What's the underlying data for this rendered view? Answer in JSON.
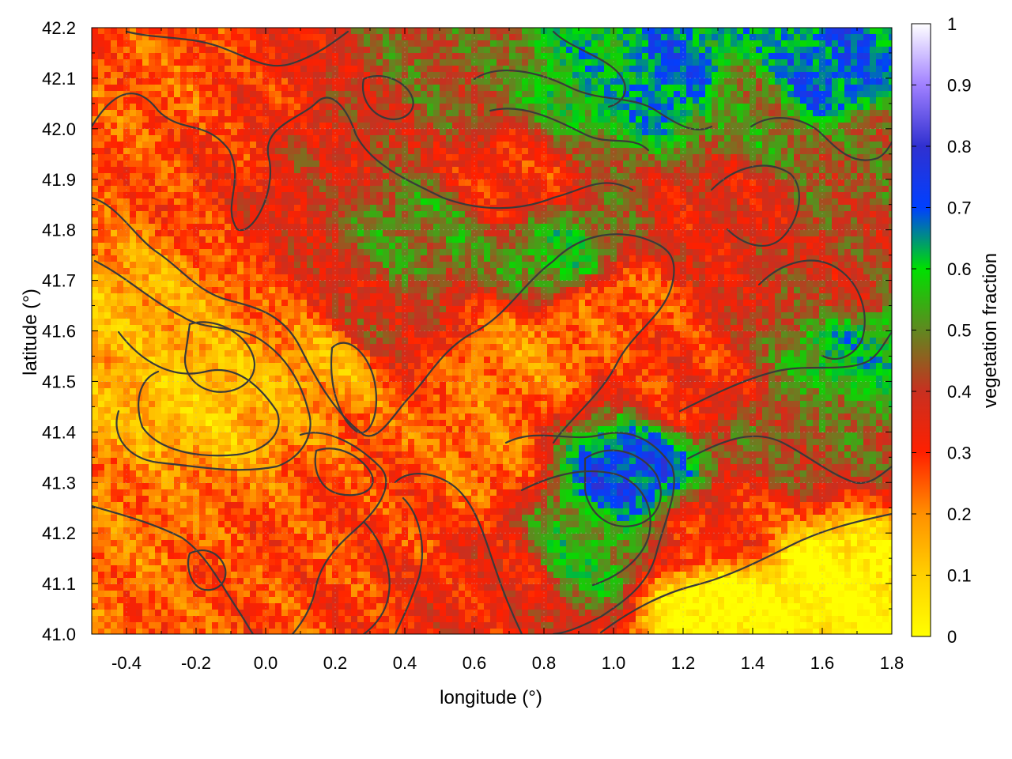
{
  "chart_data": {
    "type": "heatmap",
    "title": "",
    "xlabel": "longitude (°)",
    "ylabel": "latitude (°)",
    "xlim": [
      -0.5,
      1.8
    ],
    "ylim": [
      41.0,
      42.2
    ],
    "x_ticks": [
      "-0.4",
      "-0.2",
      "0.0",
      "0.2",
      "0.4",
      "0.6",
      "0.8",
      "1.0",
      "1.2",
      "1.4",
      "1.6",
      "1.8"
    ],
    "x_tick_values": [
      -0.4,
      -0.2,
      0.0,
      0.2,
      0.4,
      0.6,
      0.8,
      1.0,
      1.2,
      1.4,
      1.6,
      1.8
    ],
    "y_ticks": [
      "41.0",
      "41.1",
      "41.2",
      "41.3",
      "41.4",
      "41.5",
      "41.6",
      "41.7",
      "41.8",
      "41.9",
      "42.0",
      "42.1",
      "42.2"
    ],
    "y_tick_values": [
      41.0,
      41.1,
      41.2,
      41.3,
      41.4,
      41.5,
      41.6,
      41.7,
      41.8,
      41.9,
      42.0,
      42.1,
      42.2
    ],
    "grid": true,
    "colorbar": {
      "label": "vegetation fraction",
      "range": [
        0,
        1
      ],
      "ticks": [
        "0",
        "0.1",
        "0.2",
        "0.3",
        "0.4",
        "0.5",
        "0.6",
        "0.7",
        "0.8",
        "0.9",
        "1"
      ],
      "tick_values": [
        0,
        0.1,
        0.2,
        0.3,
        0.4,
        0.5,
        0.6,
        0.7,
        0.8,
        0.9,
        1.0
      ],
      "palette": [
        {
          "v": 0.0,
          "color": "#ffff00"
        },
        {
          "v": 0.1,
          "color": "#ffd000"
        },
        {
          "v": 0.2,
          "color": "#ff9000"
        },
        {
          "v": 0.3,
          "color": "#ff2000"
        },
        {
          "v": 0.4,
          "color": "#c83020"
        },
        {
          "v": 0.5,
          "color": "#608820"
        },
        {
          "v": 0.6,
          "color": "#00e000"
        },
        {
          "v": 0.7,
          "color": "#0040ff"
        },
        {
          "v": 0.8,
          "color": "#3030d0"
        },
        {
          "v": 0.9,
          "color": "#a080ff"
        },
        {
          "v": 1.0,
          "color": "#ffffff"
        }
      ]
    },
    "field_anchors": [
      {
        "lon": -0.4,
        "lat": 41.6,
        "value": 0.15
      },
      {
        "lon": -0.2,
        "lat": 41.45,
        "value": 0.12
      },
      {
        "lon": -0.35,
        "lat": 41.25,
        "value": 0.22
      },
      {
        "lon": 0.0,
        "lat": 41.15,
        "value": 0.27
      },
      {
        "lon": -0.3,
        "lat": 42.05,
        "value": 0.25
      },
      {
        "lon": -0.05,
        "lat": 42.0,
        "value": 0.3
      },
      {
        "lon": 0.15,
        "lat": 41.95,
        "value": 0.38
      },
      {
        "lon": 0.3,
        "lat": 41.6,
        "value": 0.4
      },
      {
        "lon": 0.2,
        "lat": 41.55,
        "value": 0.15
      },
      {
        "lon": 0.45,
        "lat": 41.8,
        "value": 0.5
      },
      {
        "lon": 0.55,
        "lat": 42.1,
        "value": 0.45
      },
      {
        "lon": 0.7,
        "lat": 41.9,
        "value": 0.3
      },
      {
        "lon": 0.85,
        "lat": 41.75,
        "value": 0.55
      },
      {
        "lon": 0.75,
        "lat": 41.55,
        "value": 0.2
      },
      {
        "lon": 0.6,
        "lat": 41.35,
        "value": 0.22
      },
      {
        "lon": 0.4,
        "lat": 41.25,
        "value": 0.28
      },
      {
        "lon": 0.7,
        "lat": 41.1,
        "value": 0.33
      },
      {
        "lon": 1.0,
        "lat": 41.65,
        "value": 0.25
      },
      {
        "lon": 1.2,
        "lat": 41.5,
        "value": 0.3
      },
      {
        "lon": 1.05,
        "lat": 41.32,
        "value": 0.72
      },
      {
        "lon": 0.9,
        "lat": 41.15,
        "value": 0.55
      },
      {
        "lon": 1.3,
        "lat": 41.2,
        "value": 0.3
      },
      {
        "lon": 1.55,
        "lat": 41.4,
        "value": 0.45
      },
      {
        "lon": 1.65,
        "lat": 41.7,
        "value": 0.4
      },
      {
        "lon": 1.7,
        "lat": 41.95,
        "value": 0.45
      },
      {
        "lon": 1.6,
        "lat": 42.1,
        "value": 0.7
      },
      {
        "lon": 1.15,
        "lat": 42.1,
        "value": 0.68
      },
      {
        "lon": 0.95,
        "lat": 42.1,
        "value": 0.6
      },
      {
        "lon": 1.4,
        "lat": 42.05,
        "value": 0.5
      },
      {
        "lon": 1.3,
        "lat": 41.85,
        "value": 0.35
      },
      {
        "lon": 1.7,
        "lat": 41.55,
        "value": 0.6
      },
      {
        "lon": 1.6,
        "lat": 41.1,
        "value": 0.0
      },
      {
        "lon": 1.3,
        "lat": 41.05,
        "value": 0.0
      }
    ]
  }
}
